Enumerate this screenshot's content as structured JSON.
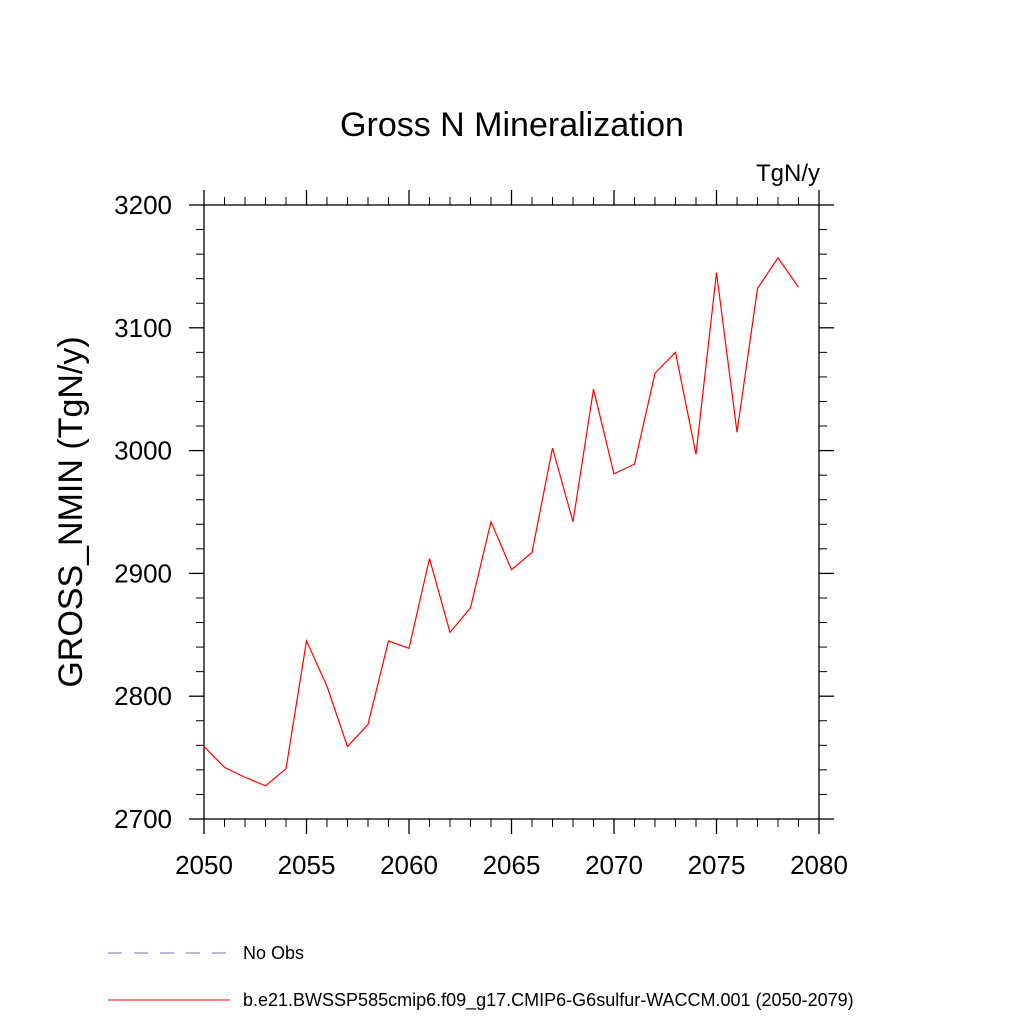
{
  "chart_data": {
    "type": "line",
    "title": "Gross N Mineralization",
    "units_label": "TgN/y",
    "ylabel": "GROSS_NMIN  (TgN/y)",
    "xlabel": "",
    "xlim": [
      2050,
      2080
    ],
    "ylim": [
      2700,
      3200
    ],
    "x_ticks": [
      2050,
      2055,
      2060,
      2065,
      2070,
      2075,
      2080
    ],
    "y_ticks": [
      2700,
      2800,
      2900,
      3000,
      3100,
      3200
    ],
    "x_minor_step": 1,
    "y_minor_step": 20,
    "grid": false,
    "legend_placement": "bottom-left",
    "series": [
      {
        "name": "b.e21.BWSSP585cmip6.f09_g17.CMIP6-G6sulfur-WACCM.001 (2050-2079)",
        "color": "#ff0000",
        "style": "solid",
        "x": [
          2050,
          2051,
          2052,
          2053,
          2054,
          2055,
          2056,
          2057,
          2058,
          2059,
          2060,
          2061,
          2062,
          2063,
          2064,
          2065,
          2066,
          2067,
          2068,
          2069,
          2070,
          2071,
          2072,
          2073,
          2074,
          2075,
          2076,
          2077,
          2078,
          2079
        ],
        "values": [
          2759,
          2742,
          2734,
          2727,
          2741,
          2845,
          2808,
          2759,
          2777,
          2845,
          2839,
          2912,
          2852,
          2872,
          2942,
          2903,
          2917,
          3002,
          2942,
          3050,
          2981,
          2989,
          3063,
          3080,
          2997,
          3145,
          3015,
          3132,
          3157,
          3133
        ]
      }
    ],
    "legend": [
      {
        "label": "No Obs",
        "color": "#7a6fc9",
        "style": "dashed"
      },
      {
        "label": "b.e21.BWSSP585cmip6.f09_g17.CMIP6-G6sulfur-WACCM.001 (2050-2079)",
        "color": "#ff0000",
        "style": "solid"
      }
    ]
  }
}
